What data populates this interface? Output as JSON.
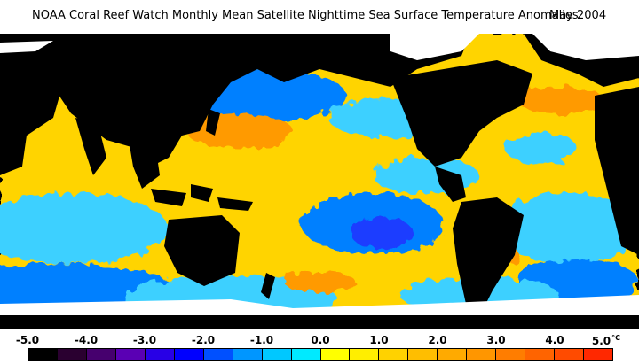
{
  "title": {
    "main": "NOAA Coral Reef Watch Monthly Mean Satellite Nighttime Sea Surface Temperature Anomalies",
    "date": "May 2004"
  },
  "legend": {
    "unit": "°C",
    "ticks": [
      "-5.0",
      "-4.0",
      "-3.0",
      "-2.0",
      "-1.0",
      "0.0",
      "1.0",
      "2.0",
      "3.0",
      "4.0",
      "5.0"
    ],
    "colors": [
      "#000000",
      "#2a0030",
      "#46006e",
      "#5a00b4",
      "#2800e6",
      "#0000ff",
      "#0050ff",
      "#0096ff",
      "#00c8ff",
      "#00eaff",
      "#ffff00",
      "#ffee00",
      "#ffd200",
      "#ffbe00",
      "#ffaa00",
      "#ff9600",
      "#ff7d00",
      "#ff6400",
      "#ff4b00",
      "#ff2800"
    ]
  },
  "map_colors": {
    "ocean_yellow": "#ffd400",
    "ocean_light_blue": "#3dd0ff",
    "ocean_blue": "#0080ff",
    "ocean_deep_blue": "#1a3cff",
    "ocean_orange": "#ff9a00",
    "ocean_red": "#ff3000",
    "land": "#000000",
    "ice": "#ffffff"
  }
}
